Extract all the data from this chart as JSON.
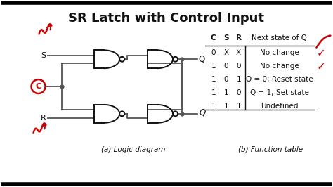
{
  "title": "SR Latch with Control Input",
  "title_fontsize": 13,
  "bg_color": "#ffffff",
  "border_color": "#111111",
  "label_a": "(a) Logic diagram",
  "label_b": "(b) Function table",
  "table_headers": [
    "C",
    "S",
    "R",
    "Next state of Q"
  ],
  "table_rows": [
    [
      "0",
      "X",
      "X",
      "No change"
    ],
    [
      "1",
      "0",
      "0",
      "No change"
    ],
    [
      "1",
      "0",
      "1",
      "Q = 0; Reset state"
    ],
    [
      "1",
      "1",
      "0",
      "Q = 1; Set state"
    ],
    [
      "1",
      "1",
      "1",
      "Undefined"
    ]
  ],
  "text_color": "#111111",
  "red_color": "#cc0000",
  "gate_color": "#111111",
  "line_color": "#555555",
  "figsize": [
    4.74,
    2.66
  ],
  "dpi": 100
}
